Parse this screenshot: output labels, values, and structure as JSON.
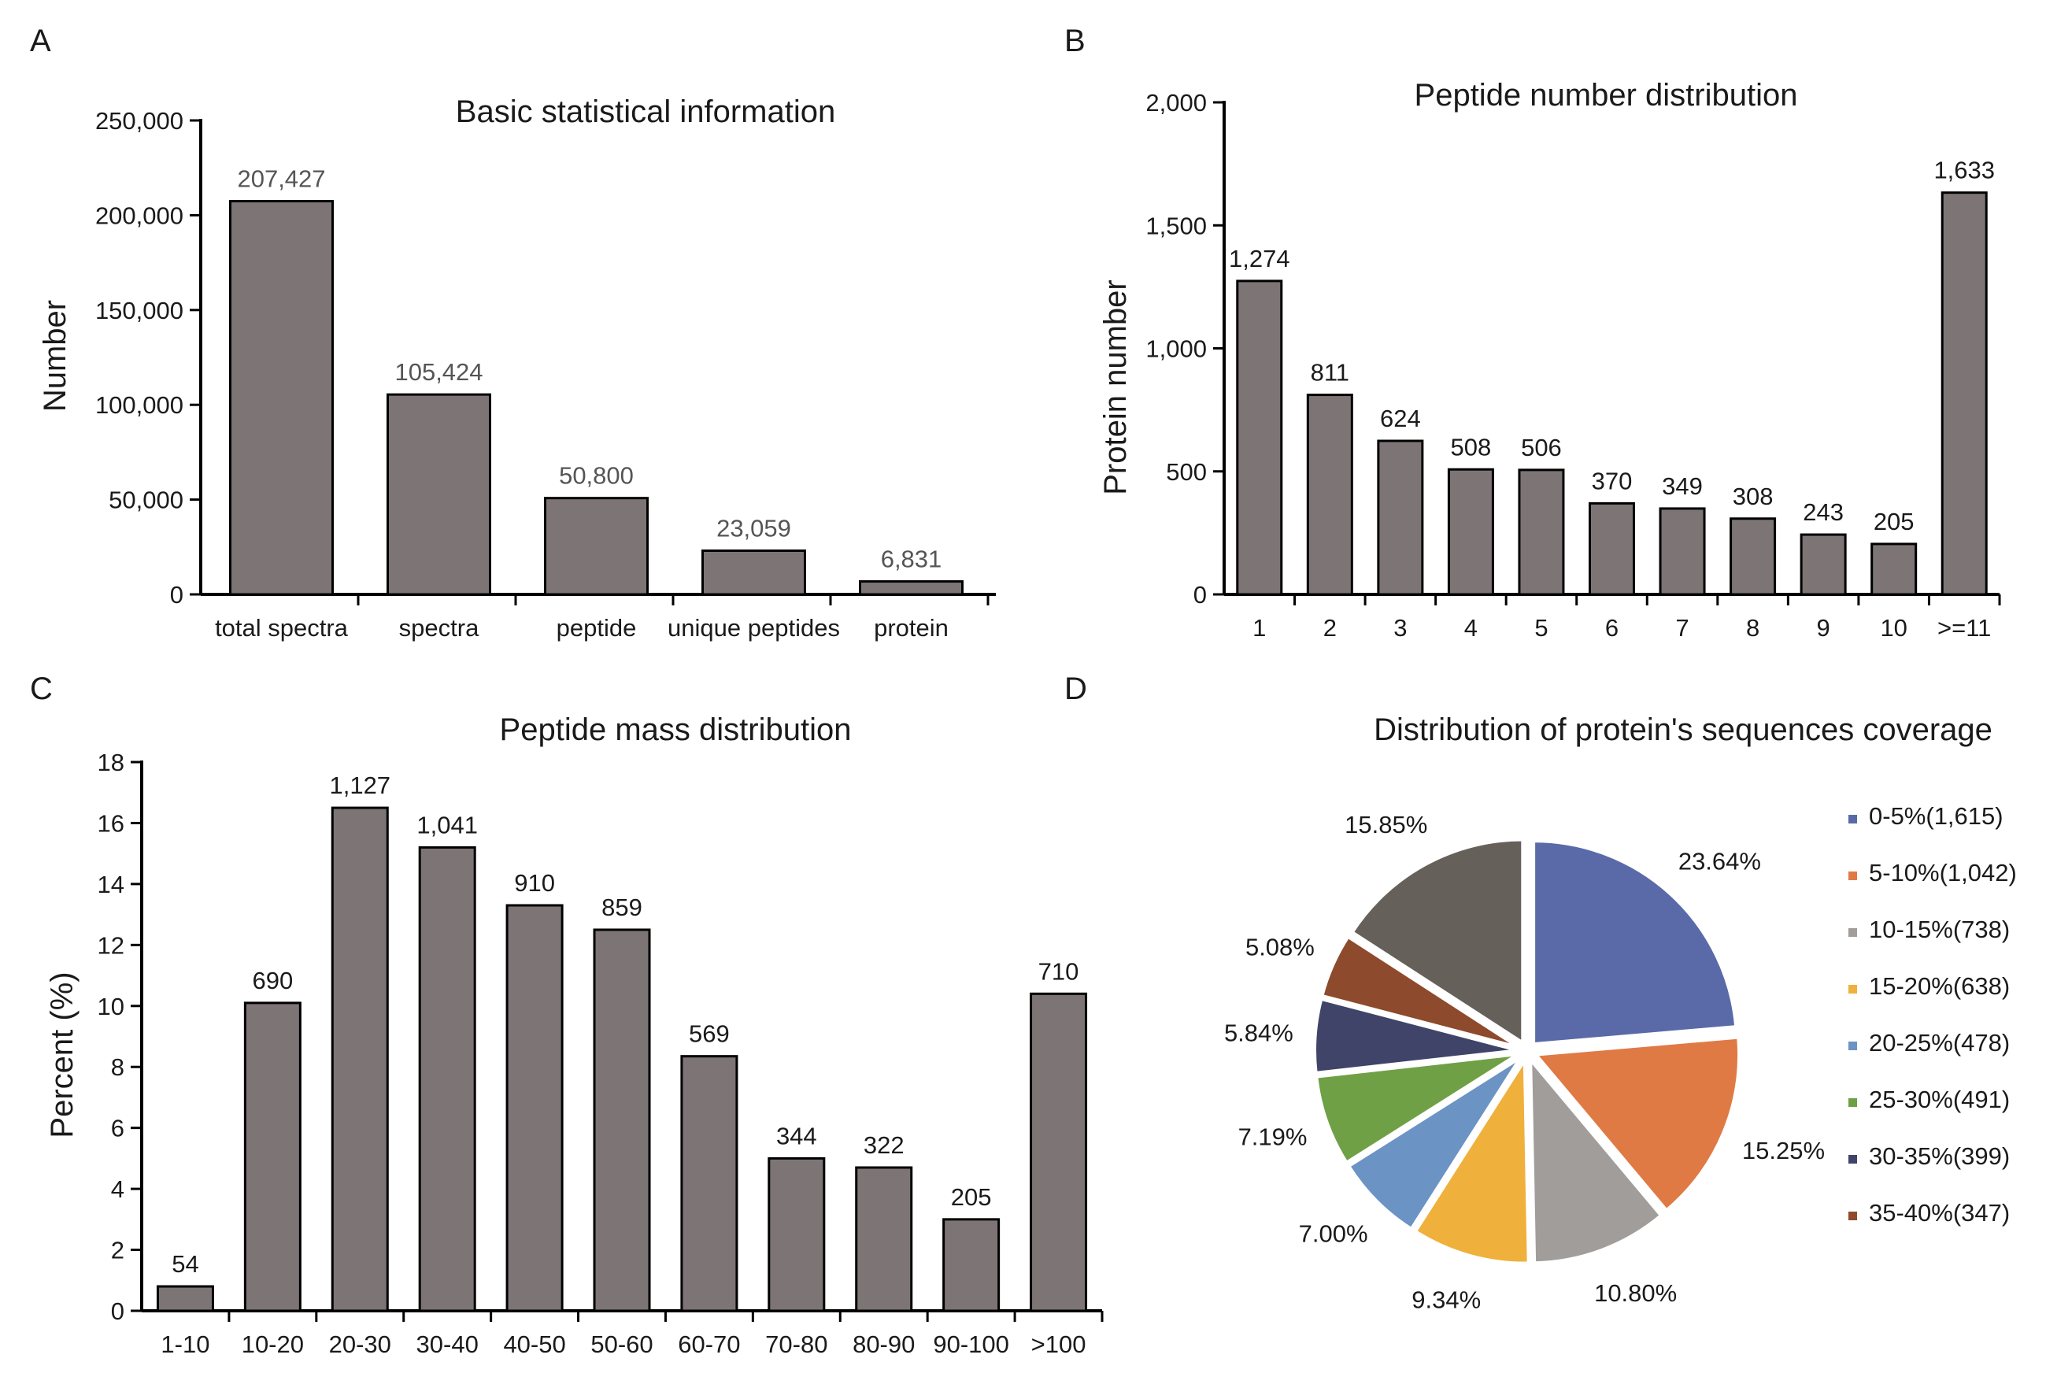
{
  "panels": [
    {
      "id": "A",
      "label": "A",
      "chart_data": {
        "type": "bar",
        "title": "Basic  statistical information",
        "xlabel": "",
        "ylabel": "Number",
        "ylim": [
          0,
          250000
        ],
        "yticks": [
          0,
          50000,
          100000,
          150000,
          200000,
          250000
        ],
        "ytick_labels": [
          "0",
          "50,000",
          "100,000",
          "150,000",
          "200,000",
          "250,000"
        ],
        "categories": [
          "total spectra",
          "spectra",
          "peptide",
          "unique peptides",
          "protein"
        ],
        "values": [
          207427,
          105424,
          50800,
          23059,
          6831
        ],
        "data_labels": [
          "207,427",
          "105,424",
          "50,800",
          "23,059",
          "6,831"
        ],
        "bar_color": "#7d7575",
        "label_color": "#555555"
      }
    },
    {
      "id": "B",
      "label": "B",
      "chart_data": {
        "type": "bar",
        "title": "Peptide number distribution",
        "xlabel": "",
        "ylabel": "Protein number",
        "ylim": [
          0,
          2000
        ],
        "yticks": [
          0,
          500,
          1000,
          1500,
          2000
        ],
        "ytick_labels": [
          "0",
          "500",
          "1,000",
          "1,500",
          "2,000"
        ],
        "categories": [
          "1",
          "2",
          "3",
          "4",
          "5",
          "6",
          "7",
          "8",
          "9",
          "10",
          ">=11"
        ],
        "values": [
          1274,
          811,
          624,
          508,
          506,
          370,
          349,
          308,
          243,
          205,
          1633
        ],
        "data_labels": [
          "1,274",
          "811",
          "624",
          "508",
          "506",
          "370",
          "349",
          "308",
          "243",
          "205",
          "1,633"
        ],
        "bar_color": "#7d7575",
        "label_color": "#1a1a1a"
      }
    },
    {
      "id": "C",
      "label": "C",
      "chart_data": {
        "type": "bar",
        "title": "Peptide mass distribution",
        "xlabel": "",
        "ylabel": "Percent (%)",
        "ylim": [
          0,
          18
        ],
        "yticks": [
          0,
          2,
          4,
          6,
          8,
          10,
          12,
          14,
          16,
          18
        ],
        "ytick_labels": [
          "0",
          "2",
          "4",
          "6",
          "8",
          "10",
          "12",
          "14",
          "16",
          "18"
        ],
        "categories": [
          "1-10",
          "10-20",
          "20-30",
          "30-40",
          "40-50",
          "50-60",
          "60-70",
          "70-80",
          "80-90",
          "90-100",
          ">100"
        ],
        "values": [
          0.8,
          10.1,
          16.5,
          15.2,
          13.3,
          12.5,
          8.35,
          5.0,
          4.7,
          3.0,
          10.4
        ],
        "data_labels": [
          "54",
          "690",
          "1,127",
          "1,041",
          "910",
          "859",
          "569",
          "344",
          "322",
          "205",
          "710"
        ],
        "bar_color": "#7d7575",
        "label_color": "#1a1a1a"
      }
    },
    {
      "id": "D",
      "label": "D",
      "chart_data": {
        "type": "pie",
        "title": "Distribution of protein's sequences coverage",
        "slices": [
          {
            "name": "0-5%(1,615)",
            "value": 23.64,
            "label": "23.64%",
            "color": "#5a6aa8"
          },
          {
            "name": "5-10%(1,042)",
            "value": 15.25,
            "label": "15.25%",
            "color": "#e07a45"
          },
          {
            "name": "10-15%(738)",
            "value": 10.8,
            "label": "10.80%",
            "color": "#a19d9a"
          },
          {
            "name": "15-20%(638)",
            "value": 9.34,
            "label": "9.34%",
            "color": "#f0b03c"
          },
          {
            "name": "20-25%(478)",
            "value": 7.0,
            "label": "7.00%",
            "color": "#6b93c4"
          },
          {
            "name": "25-30%(491)",
            "value": 7.19,
            "label": "7.19%",
            "color": "#70a045"
          },
          {
            "name": "30-35%(399)",
            "value": 5.84,
            "label": "5.84%",
            "color": "#3f4468"
          },
          {
            "name": "35-40%(347)",
            "value": 5.08,
            "label": "5.08%",
            "color": "#8e4a2c"
          },
          {
            "name": "",
            "value": 15.85,
            "label": "15.85%",
            "color": "#66605a"
          }
        ],
        "legend_position": "right"
      }
    }
  ]
}
